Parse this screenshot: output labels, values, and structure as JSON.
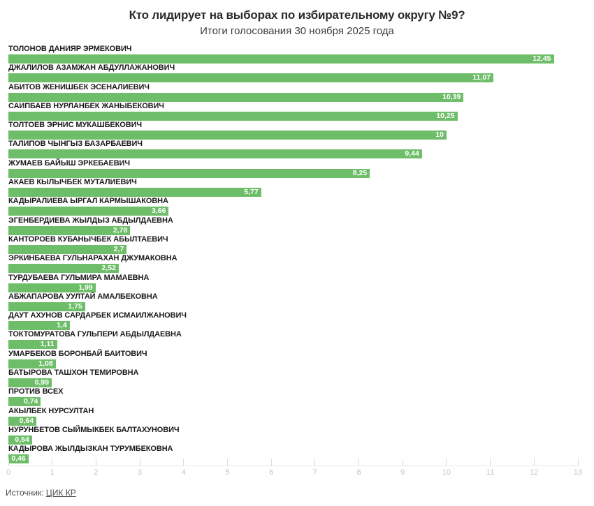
{
  "header": {
    "title": "Кто лидирует на выборах по избирательному округу №9?",
    "subtitle": "Итоги голосования 30 ноября 2025 года"
  },
  "chart_data": {
    "type": "bar",
    "orientation": "horizontal",
    "title": "Кто лидирует на выборах по избирательному округу №9?",
    "subtitle": "Итоги голосования 30 ноября 2025 года",
    "categories": [
      "ТОЛОНОВ ДАНИЯР ЭРМЕКОВИЧ",
      "ДЖАЛИЛОВ АЗАМЖАН АБДУЛЛАЖАНОВИЧ",
      "АБИТОВ ЖЕНИШБЕК ЭСЕНАЛИЕВИЧ",
      "САИПБАЕВ НУРЛАНБЕК ЖАНЫБЕКОВИЧ",
      "ТОЛТОЕВ ЭРНИС МУКАШБЕКОВИЧ",
      "ТАЛИПОВ ЧЫНГЫЗ БАЗАРБАЕВИЧ",
      "ЖУМАЕВ БАЙЫШ ЭРКЕБАЕВИЧ",
      "АКАЕВ КЫЛЫЧБЕК МУТАЛИЕВИЧ",
      "КАДЫРАЛИЕВА ЫРГАЛ КАРМЫШАКОВНА",
      "ЭГЕНБЕРДИЕВА ЖЫЛДЫЗ АБДЫЛДАЕВНА",
      "КАНТОРОЕВ КУБАНЫЧБЕК АБЫЛТАЕВИЧ",
      "ЭРКИНБАЕВА ГУЛЬНАРАХАН ДЖУМАКОВНА",
      "ТУРДУБАЕВА ГУЛЬМИРА МАМАЕВНА",
      "АБЖАПАРОВА УУЛТАЙ АМАЛБЕКОВНА",
      "ДАУТ АХУНОВ САРДАРБЕК ИСМАИЛЖАНОВИЧ",
      "ТОКТОМУРАТОВА ГУЛЬПЕРИ АБДЫЛДАЕВНА",
      "УМАРБЕКОВ БОРОНБАЙ БАИТОВИЧ",
      "БАТЫРОВА ТАШХОН ТЕМИРОВНА",
      "ПРОТИВ ВСЕХ",
      "АКЫЛБЕК НУРСУЛТАН",
      "НУРУНБЕТОВ СЫЙМЫКБЕК БАЛТАХУНОВИЧ",
      "КАДЫРОВА ЖЫЛДЫЗКАН ТУРУМБЕКОВНА"
    ],
    "values": [
      12.45,
      11.07,
      10.39,
      10.25,
      10,
      9.44,
      8.25,
      5.77,
      3.66,
      2.78,
      2.7,
      2.52,
      1.99,
      1.75,
      1.4,
      1.11,
      1.08,
      0.99,
      0.74,
      0.64,
      0.54,
      0.46
    ],
    "value_labels": [
      "12,45",
      "11,07",
      "10,39",
      "10,25",
      "10",
      "9,44",
      "8,25",
      "5,77",
      "3,66",
      "2,78",
      "2,7",
      "2,52",
      "1,99",
      "1,75",
      "1,4",
      "1,11",
      "1,08",
      "0,99",
      "0,74",
      "0,64",
      "0,54",
      "0,46"
    ],
    "xlabel": "",
    "ylabel": "",
    "xlim": [
      0,
      13
    ],
    "x_ticks": [
      0,
      1,
      2,
      3,
      4,
      5,
      6,
      7,
      8,
      9,
      10,
      11,
      12,
      13
    ],
    "grid": "axis-ticks-only",
    "legend": "none",
    "bar_color": "#6ebe69",
    "value_label_color": "#ffffff"
  },
  "footer": {
    "source_label": "Источник:",
    "source_link": "ЦИК КР"
  }
}
